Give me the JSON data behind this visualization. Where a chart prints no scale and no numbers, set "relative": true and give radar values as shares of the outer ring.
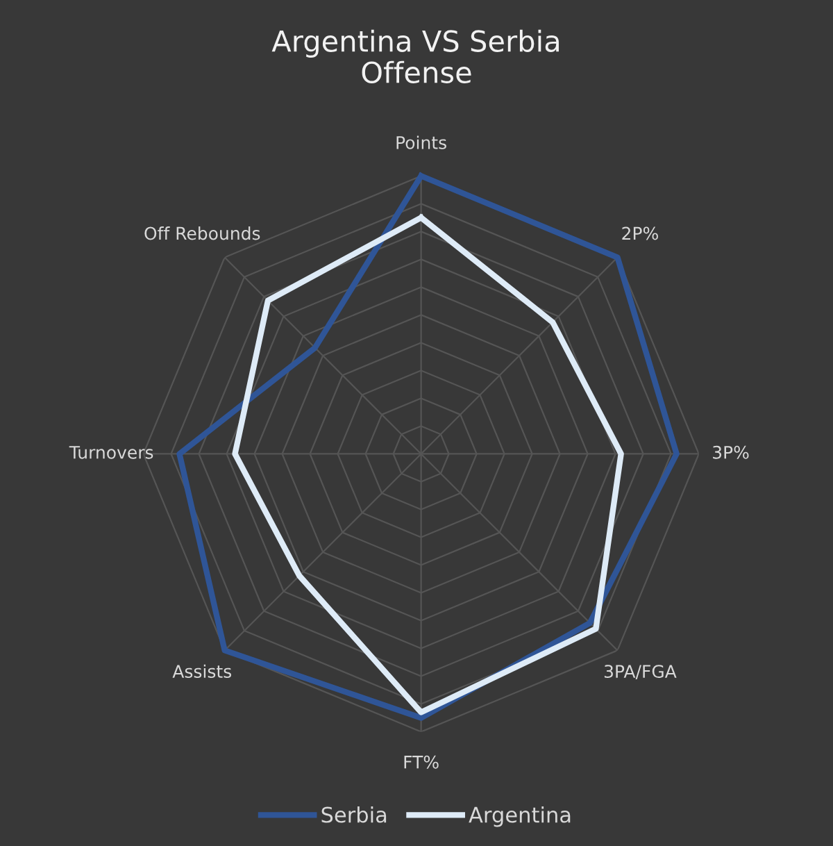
{
  "chart_data": {
    "type": "radar",
    "title": "Argentina VS Serbia\nOffense",
    "relative": true,
    "grid": true,
    "legend": "bottom",
    "marker": "none",
    "line_style": "solid",
    "categories": [
      "Points",
      "2P%",
      "3P%",
      "3PA/FGA",
      "FT%",
      "Assists",
      "Turnovers",
      "Off Rebounds"
    ],
    "series": [
      {
        "name": "Serbia",
        "color": "#2f5597",
        "values": [
          1.0,
          1.0,
          0.92,
          0.86,
          0.95,
          1.0,
          0.87,
          0.54
        ]
      },
      {
        "name": "Argentina",
        "color": "#deebf7",
        "values": [
          0.85,
          0.67,
          0.72,
          0.89,
          0.93,
          0.62,
          0.67,
          0.78
        ]
      }
    ]
  }
}
